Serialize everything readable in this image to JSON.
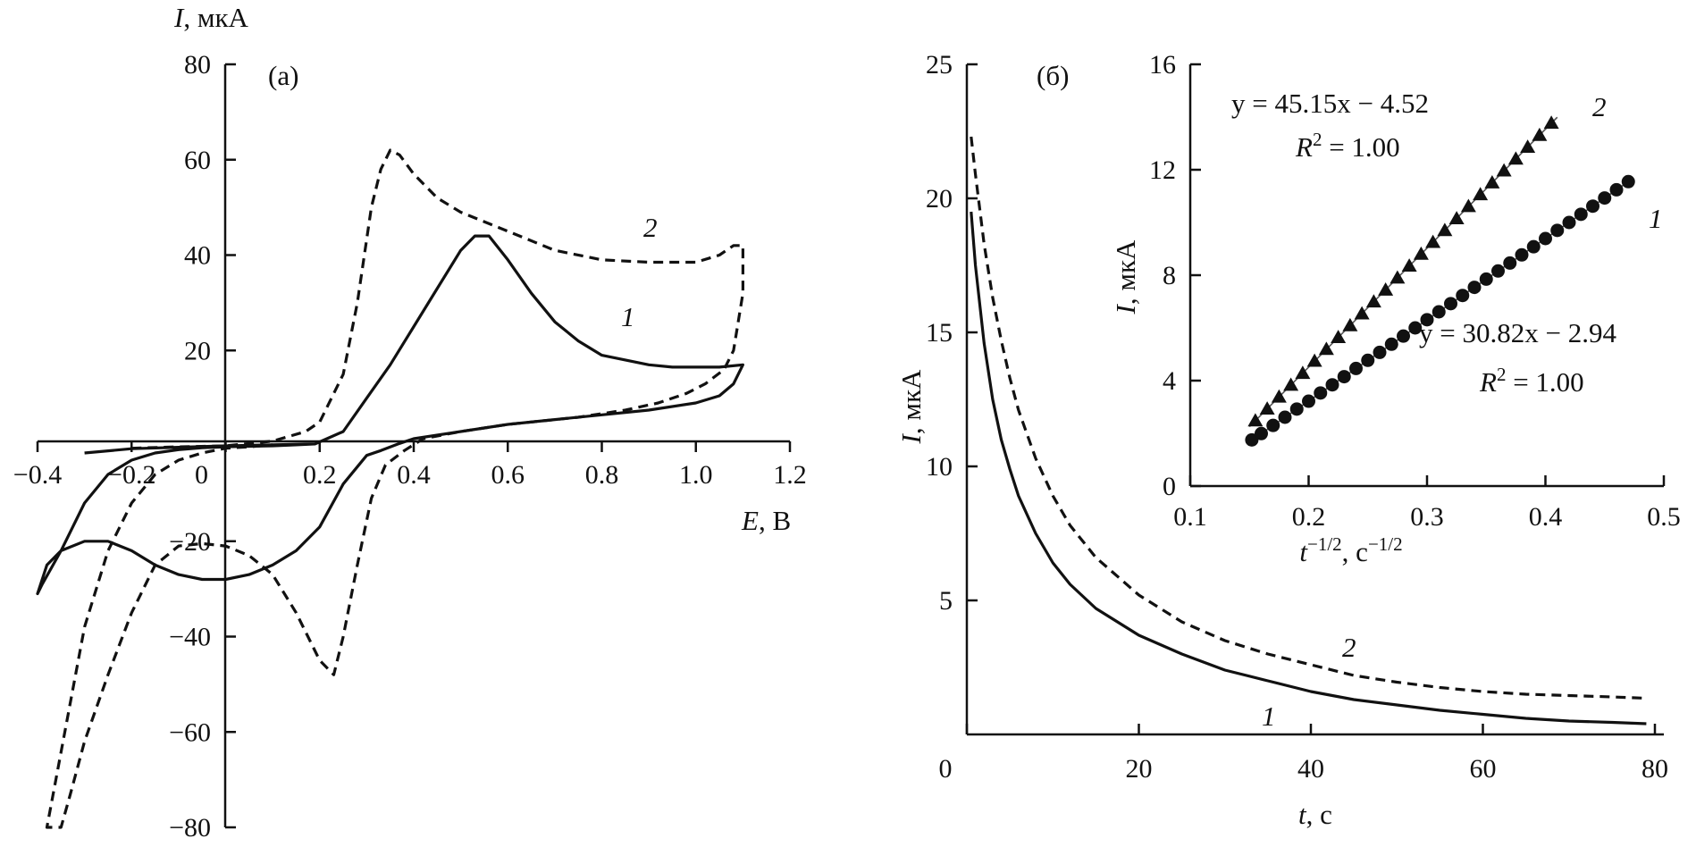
{
  "chart_data": [
    {
      "type": "line",
      "panel_label": "(а)",
      "xlabel": "E, В",
      "ylabel": "I, мкА",
      "x_label_var": "E",
      "x_label_unit": ", В",
      "y_label_var": "I",
      "y_label_unit": ", мкА",
      "xlim": [
        -0.4,
        1.2
      ],
      "ylim": [
        -80,
        80
      ],
      "xticks": [
        -0.4,
        -0.2,
        0,
        0.2,
        0.4,
        0.6,
        0.8,
        1.0,
        1.2
      ],
      "xtick_labels": [
        "−0.4",
        "−0.2",
        "0",
        "0.2",
        "0.4",
        "0.6",
        "0.8",
        "1.0",
        "1.2"
      ],
      "yticks": [
        80,
        60,
        40,
        20,
        -20,
        -40,
        -60,
        -80
      ],
      "ytick_labels": [
        "80",
        "60",
        "40",
        "20",
        "−20",
        "−40",
        "−60",
        "−80"
      ],
      "series": [
        {
          "label": "1",
          "style": "solid",
          "x": [
            -0.3,
            -0.2,
            -0.1,
            0,
            0.1,
            0.19,
            0.25,
            0.3,
            0.35,
            0.4,
            0.45,
            0.5,
            0.53,
            0.56,
            0.6,
            0.65,
            0.7,
            0.75,
            0.8,
            0.85,
            0.9,
            0.95,
            1.0,
            1.05,
            1.1,
            1.08,
            1.05,
            1.0,
            0.9,
            0.8,
            0.7,
            0.6,
            0.5,
            0.4,
            0.37,
            0.33,
            0.3,
            0.25,
            0.2,
            0.15,
            0.1,
            0.05,
            0,
            -0.05,
            -0.1,
            -0.15,
            -0.2,
            -0.25,
            -0.3,
            -0.35,
            -0.38,
            -0.4,
            -0.39,
            -0.35,
            -0.3,
            -0.25,
            -0.2,
            -0.15,
            -0.1,
            -0.05,
            0,
            0.05,
            0.1,
            0.15,
            0.19
          ],
          "y": [
            -1.5,
            -0.6,
            -0.3,
            0,
            0.2,
            0.4,
            3,
            10,
            17,
            25,
            33,
            41,
            44,
            44,
            39,
            32,
            26,
            22,
            19,
            18,
            17,
            16.5,
            16.5,
            16.5,
            17,
            13,
            10.5,
            9,
            7.5,
            6.5,
            5.5,
            4.5,
            3,
            1.5,
            0.5,
            -1,
            -2,
            -8,
            -17,
            -22,
            -25,
            -27,
            -28,
            -28,
            -27,
            -25,
            -22,
            -20,
            -20,
            -22,
            -25,
            -31,
            -29,
            -22,
            -12,
            -6,
            -3,
            -1.5,
            -0.8,
            -0.4,
            -0.2,
            -0.1,
            0,
            0.2,
            0.4
          ]
        },
        {
          "label": "2",
          "style": "dashed",
          "x": [
            -0.2,
            -0.1,
            0,
            0.1,
            0.17,
            0.2,
            0.25,
            0.28,
            0.31,
            0.33,
            0.35,
            0.37,
            0.4,
            0.45,
            0.5,
            0.6,
            0.7,
            0.8,
            0.9,
            1.0,
            1.05,
            1.08,
            1.1,
            1.1,
            1.08,
            1.06,
            1.02,
            0.98,
            0.92,
            0.85,
            0.75,
            0.6,
            0.5,
            0.42,
            0.38,
            0.34,
            0.31,
            0.28,
            0.25,
            0.23,
            0.2,
            0.15,
            0.1,
            0.05,
            0,
            -0.05,
            -0.1,
            -0.15,
            -0.2,
            -0.25,
            -0.3,
            -0.33,
            -0.35,
            -0.38,
            -0.3,
            -0.25,
            -0.2,
            -0.15,
            -0.1,
            -0.05,
            0,
            0.05,
            0.1
          ],
          "y": [
            -0.5,
            -0.2,
            0,
            1,
            3,
            5,
            15,
            30,
            50,
            58,
            62,
            61,
            57,
            52,
            49,
            45,
            41,
            39,
            38.5,
            38.5,
            40,
            42,
            42,
            32,
            20,
            16,
            13,
            11,
            9,
            7.5,
            6,
            4.5,
            3,
            1.5,
            -1,
            -4,
            -11,
            -25,
            -40,
            -48,
            -45,
            -35,
            -27,
            -23,
            -21,
            -20.5,
            -21,
            -25,
            -35,
            -48,
            -62,
            -73,
            -80,
            -80,
            -38,
            -22,
            -12,
            -6,
            -3,
            -1.5,
            -0.5,
            -0.2,
            0.2
          ]
        }
      ]
    },
    {
      "type": "line",
      "panel_label": "(б)",
      "xlabel": "t, с",
      "ylabel": "I, мкА",
      "x_label_var": "t",
      "x_label_unit": ", с",
      "y_label_var": "I",
      "y_label_unit": ", мкА",
      "xlim": [
        0,
        80
      ],
      "ylim": [
        0,
        25
      ],
      "xticks": [
        0,
        20,
        40,
        60,
        80
      ],
      "xtick_labels": [
        "0",
        "20",
        "40",
        "60",
        "80"
      ],
      "yticks": [
        5,
        10,
        15,
        20,
        25
      ],
      "ytick_labels": [
        "5",
        "10",
        "15",
        "20",
        "25"
      ],
      "series": [
        {
          "label": "1",
          "style": "solid",
          "x": [
            0.5,
            1,
            2,
            3,
            4,
            5,
            6,
            8,
            10,
            12,
            15,
            20,
            25,
            30,
            35,
            40,
            45,
            50,
            55,
            60,
            65,
            70,
            75,
            79
          ],
          "y": [
            19.5,
            17.5,
            14.6,
            12.5,
            11.0,
            9.9,
            8.9,
            7.5,
            6.4,
            5.6,
            4.7,
            3.7,
            3.0,
            2.4,
            2.0,
            1.6,
            1.3,
            1.1,
            0.9,
            0.75,
            0.6,
            0.5,
            0.45,
            0.4
          ]
        },
        {
          "label": "2",
          "style": "dashed",
          "x": [
            0.5,
            1,
            2,
            3,
            4,
            5,
            6,
            8,
            10,
            12,
            15,
            20,
            25,
            30,
            35,
            40,
            45,
            50,
            55,
            60,
            65,
            70,
            75,
            79
          ],
          "y": [
            22.3,
            20.9,
            18.3,
            16.3,
            14.7,
            13.3,
            12.1,
            10.3,
            8.9,
            7.8,
            6.6,
            5.2,
            4.2,
            3.5,
            3.0,
            2.6,
            2.2,
            1.95,
            1.75,
            1.6,
            1.5,
            1.45,
            1.4,
            1.35
          ]
        }
      ]
    },
    {
      "type": "scatter",
      "panel_label": "",
      "xlabel": "t^−1/2, с^−1/2",
      "ylabel": "I, мкА",
      "x_label_var": "t",
      "x_label_sup": "−1/2",
      "x_label_unit": ", с",
      "x_label_unit_sup": "−1/2",
      "y_label_var": "I",
      "y_label_unit": ", мкА",
      "xlim": [
        0.1,
        0.5
      ],
      "ylim": [
        0,
        16
      ],
      "xticks": [
        0.1,
        0.2,
        0.3,
        0.4,
        0.5
      ],
      "xtick_labels": [
        "0.1",
        "0.2",
        "0.3",
        "0.4",
        "0.5"
      ],
      "yticks": [
        0,
        4,
        8,
        12,
        16
      ],
      "ytick_labels": [
        "0",
        "4",
        "8",
        "12",
        "16"
      ],
      "series": [
        {
          "label": "1",
          "marker": "circle",
          "fit_slope": 30.82,
          "fit_intercept": -2.94,
          "fit_x": [
            0.15,
            0.47
          ],
          "equation": "y = 30.82x − 2.94",
          "r2_var": "R",
          "r2_sup": "2",
          "r2_value": " = 1.00",
          "x": [
            0.152,
            0.16,
            0.17,
            0.18,
            0.19,
            0.2,
            0.21,
            0.22,
            0.23,
            0.24,
            0.25,
            0.26,
            0.27,
            0.28,
            0.29,
            0.3,
            0.31,
            0.32,
            0.33,
            0.34,
            0.35,
            0.36,
            0.37,
            0.38,
            0.39,
            0.4,
            0.41,
            0.42,
            0.43,
            0.44,
            0.45,
            0.46,
            0.47
          ],
          "y": [
            1.75,
            1.99,
            2.3,
            2.61,
            2.92,
            3.22,
            3.53,
            3.84,
            4.15,
            4.46,
            4.77,
            5.07,
            5.38,
            5.69,
            6.0,
            6.31,
            6.61,
            6.92,
            7.23,
            7.54,
            7.85,
            8.16,
            8.46,
            8.77,
            9.08,
            9.39,
            9.7,
            10.0,
            10.31,
            10.62,
            10.93,
            11.24,
            11.55
          ]
        },
        {
          "label": "2",
          "marker": "triangle",
          "fit_slope": 45.15,
          "fit_intercept": -4.52,
          "fit_x": [
            0.15,
            0.41
          ],
          "equation": "y = 45.15x − 4.52",
          "r2_var": "R",
          "r2_sup": "2",
          "r2_value": " = 1.00",
          "x": [
            0.155,
            0.165,
            0.175,
            0.185,
            0.195,
            0.205,
            0.215,
            0.225,
            0.235,
            0.245,
            0.255,
            0.265,
            0.275,
            0.285,
            0.295,
            0.305,
            0.315,
            0.325,
            0.335,
            0.345,
            0.355,
            0.365,
            0.375,
            0.385,
            0.395,
            0.405
          ],
          "y": [
            2.48,
            2.93,
            3.38,
            3.83,
            4.28,
            4.74,
            5.19,
            5.64,
            6.09,
            6.54,
            6.99,
            7.44,
            7.9,
            8.35,
            8.8,
            9.25,
            9.7,
            10.15,
            10.61,
            11.06,
            11.51,
            11.96,
            12.41,
            12.86,
            13.31,
            13.77
          ]
        }
      ]
    }
  ]
}
